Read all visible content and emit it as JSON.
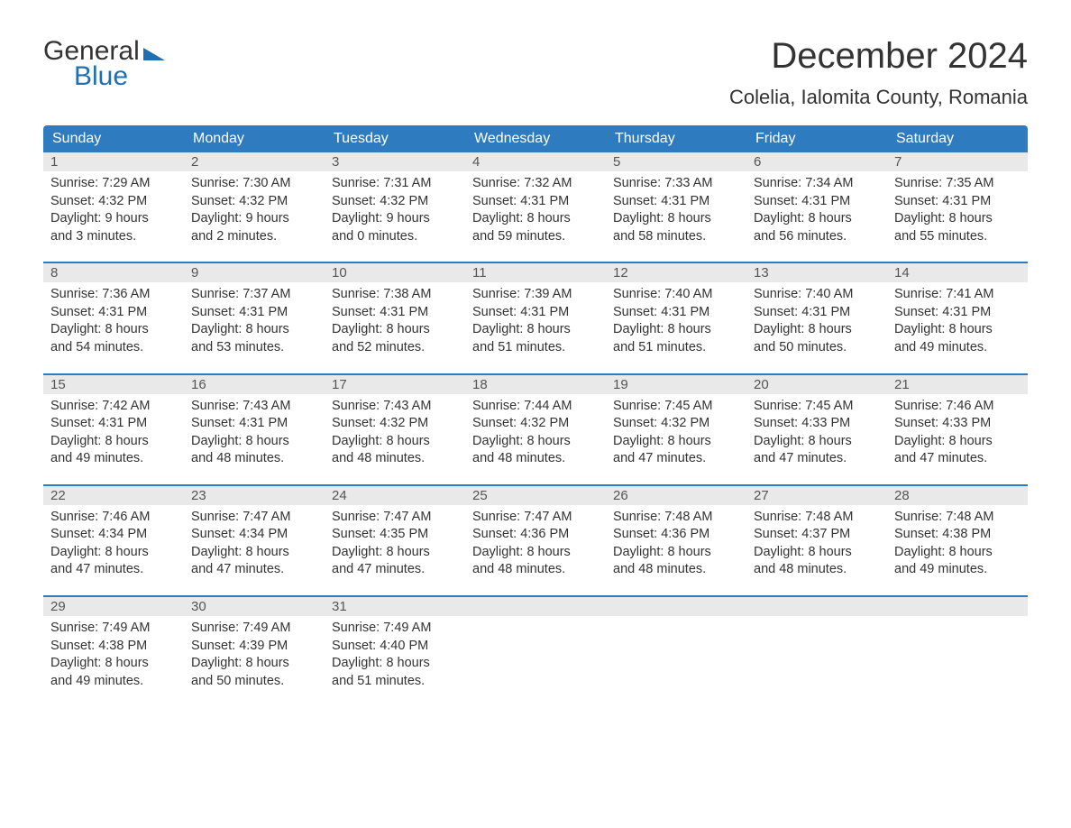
{
  "logo": {
    "text_general": "General",
    "text_blue": "Blue"
  },
  "title": "December 2024",
  "location": "Colelia, Ialomita County, Romania",
  "calendar": {
    "header_bg": "#2f7bbf",
    "header_text_color": "#ffffff",
    "date_bg": "#e9e9e9",
    "border_color": "#2f7bbf",
    "text_color": "#333333",
    "day_names": [
      "Sunday",
      "Monday",
      "Tuesday",
      "Wednesday",
      "Thursday",
      "Friday",
      "Saturday"
    ],
    "weeks": [
      [
        {
          "date": "1",
          "sunrise": "Sunrise: 7:29 AM",
          "sunset": "Sunset: 4:32 PM",
          "daylight1": "Daylight: 9 hours",
          "daylight2": "and 3 minutes."
        },
        {
          "date": "2",
          "sunrise": "Sunrise: 7:30 AM",
          "sunset": "Sunset: 4:32 PM",
          "daylight1": "Daylight: 9 hours",
          "daylight2": "and 2 minutes."
        },
        {
          "date": "3",
          "sunrise": "Sunrise: 7:31 AM",
          "sunset": "Sunset: 4:32 PM",
          "daylight1": "Daylight: 9 hours",
          "daylight2": "and 0 minutes."
        },
        {
          "date": "4",
          "sunrise": "Sunrise: 7:32 AM",
          "sunset": "Sunset: 4:31 PM",
          "daylight1": "Daylight: 8 hours",
          "daylight2": "and 59 minutes."
        },
        {
          "date": "5",
          "sunrise": "Sunrise: 7:33 AM",
          "sunset": "Sunset: 4:31 PM",
          "daylight1": "Daylight: 8 hours",
          "daylight2": "and 58 minutes."
        },
        {
          "date": "6",
          "sunrise": "Sunrise: 7:34 AM",
          "sunset": "Sunset: 4:31 PM",
          "daylight1": "Daylight: 8 hours",
          "daylight2": "and 56 minutes."
        },
        {
          "date": "7",
          "sunrise": "Sunrise: 7:35 AM",
          "sunset": "Sunset: 4:31 PM",
          "daylight1": "Daylight: 8 hours",
          "daylight2": "and 55 minutes."
        }
      ],
      [
        {
          "date": "8",
          "sunrise": "Sunrise: 7:36 AM",
          "sunset": "Sunset: 4:31 PM",
          "daylight1": "Daylight: 8 hours",
          "daylight2": "and 54 minutes."
        },
        {
          "date": "9",
          "sunrise": "Sunrise: 7:37 AM",
          "sunset": "Sunset: 4:31 PM",
          "daylight1": "Daylight: 8 hours",
          "daylight2": "and 53 minutes."
        },
        {
          "date": "10",
          "sunrise": "Sunrise: 7:38 AM",
          "sunset": "Sunset: 4:31 PM",
          "daylight1": "Daylight: 8 hours",
          "daylight2": "and 52 minutes."
        },
        {
          "date": "11",
          "sunrise": "Sunrise: 7:39 AM",
          "sunset": "Sunset: 4:31 PM",
          "daylight1": "Daylight: 8 hours",
          "daylight2": "and 51 minutes."
        },
        {
          "date": "12",
          "sunrise": "Sunrise: 7:40 AM",
          "sunset": "Sunset: 4:31 PM",
          "daylight1": "Daylight: 8 hours",
          "daylight2": "and 51 minutes."
        },
        {
          "date": "13",
          "sunrise": "Sunrise: 7:40 AM",
          "sunset": "Sunset: 4:31 PM",
          "daylight1": "Daylight: 8 hours",
          "daylight2": "and 50 minutes."
        },
        {
          "date": "14",
          "sunrise": "Sunrise: 7:41 AM",
          "sunset": "Sunset: 4:31 PM",
          "daylight1": "Daylight: 8 hours",
          "daylight2": "and 49 minutes."
        }
      ],
      [
        {
          "date": "15",
          "sunrise": "Sunrise: 7:42 AM",
          "sunset": "Sunset: 4:31 PM",
          "daylight1": "Daylight: 8 hours",
          "daylight2": "and 49 minutes."
        },
        {
          "date": "16",
          "sunrise": "Sunrise: 7:43 AM",
          "sunset": "Sunset: 4:31 PM",
          "daylight1": "Daylight: 8 hours",
          "daylight2": "and 48 minutes."
        },
        {
          "date": "17",
          "sunrise": "Sunrise: 7:43 AM",
          "sunset": "Sunset: 4:32 PM",
          "daylight1": "Daylight: 8 hours",
          "daylight2": "and 48 minutes."
        },
        {
          "date": "18",
          "sunrise": "Sunrise: 7:44 AM",
          "sunset": "Sunset: 4:32 PM",
          "daylight1": "Daylight: 8 hours",
          "daylight2": "and 48 minutes."
        },
        {
          "date": "19",
          "sunrise": "Sunrise: 7:45 AM",
          "sunset": "Sunset: 4:32 PM",
          "daylight1": "Daylight: 8 hours",
          "daylight2": "and 47 minutes."
        },
        {
          "date": "20",
          "sunrise": "Sunrise: 7:45 AM",
          "sunset": "Sunset: 4:33 PM",
          "daylight1": "Daylight: 8 hours",
          "daylight2": "and 47 minutes."
        },
        {
          "date": "21",
          "sunrise": "Sunrise: 7:46 AM",
          "sunset": "Sunset: 4:33 PM",
          "daylight1": "Daylight: 8 hours",
          "daylight2": "and 47 minutes."
        }
      ],
      [
        {
          "date": "22",
          "sunrise": "Sunrise: 7:46 AM",
          "sunset": "Sunset: 4:34 PM",
          "daylight1": "Daylight: 8 hours",
          "daylight2": "and 47 minutes."
        },
        {
          "date": "23",
          "sunrise": "Sunrise: 7:47 AM",
          "sunset": "Sunset: 4:34 PM",
          "daylight1": "Daylight: 8 hours",
          "daylight2": "and 47 minutes."
        },
        {
          "date": "24",
          "sunrise": "Sunrise: 7:47 AM",
          "sunset": "Sunset: 4:35 PM",
          "daylight1": "Daylight: 8 hours",
          "daylight2": "and 47 minutes."
        },
        {
          "date": "25",
          "sunrise": "Sunrise: 7:47 AM",
          "sunset": "Sunset: 4:36 PM",
          "daylight1": "Daylight: 8 hours",
          "daylight2": "and 48 minutes."
        },
        {
          "date": "26",
          "sunrise": "Sunrise: 7:48 AM",
          "sunset": "Sunset: 4:36 PM",
          "daylight1": "Daylight: 8 hours",
          "daylight2": "and 48 minutes."
        },
        {
          "date": "27",
          "sunrise": "Sunrise: 7:48 AM",
          "sunset": "Sunset: 4:37 PM",
          "daylight1": "Daylight: 8 hours",
          "daylight2": "and 48 minutes."
        },
        {
          "date": "28",
          "sunrise": "Sunrise: 7:48 AM",
          "sunset": "Sunset: 4:38 PM",
          "daylight1": "Daylight: 8 hours",
          "daylight2": "and 49 minutes."
        }
      ],
      [
        {
          "date": "29",
          "sunrise": "Sunrise: 7:49 AM",
          "sunset": "Sunset: 4:38 PM",
          "daylight1": "Daylight: 8 hours",
          "daylight2": "and 49 minutes."
        },
        {
          "date": "30",
          "sunrise": "Sunrise: 7:49 AM",
          "sunset": "Sunset: 4:39 PM",
          "daylight1": "Daylight: 8 hours",
          "daylight2": "and 50 minutes."
        },
        {
          "date": "31",
          "sunrise": "Sunrise: 7:49 AM",
          "sunset": "Sunset: 4:40 PM",
          "daylight1": "Daylight: 8 hours",
          "daylight2": "and 51 minutes."
        },
        null,
        null,
        null,
        null
      ]
    ]
  }
}
